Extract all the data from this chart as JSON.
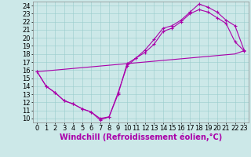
{
  "xlabel": "Windchill (Refroidissement éolien,°C)",
  "background_color": "#cce8e8",
  "line_color": "#aa00aa",
  "xlim": [
    -0.5,
    23.5
  ],
  "ylim": [
    9.5,
    24.5
  ],
  "xticks": [
    0,
    1,
    2,
    3,
    4,
    5,
    6,
    7,
    8,
    9,
    10,
    11,
    12,
    13,
    14,
    15,
    16,
    17,
    18,
    19,
    20,
    21,
    22,
    23
  ],
  "yticks": [
    10,
    11,
    12,
    13,
    14,
    15,
    16,
    17,
    18,
    19,
    20,
    21,
    22,
    23,
    24
  ],
  "series1_x": [
    0,
    1,
    2,
    3,
    4,
    5,
    6,
    7,
    8,
    9,
    10,
    11,
    12,
    13,
    14,
    15,
    16,
    17,
    18,
    19,
    20,
    21,
    22,
    23
  ],
  "series1_y": [
    15.8,
    14.0,
    13.2,
    12.2,
    11.8,
    11.2,
    10.8,
    10.0,
    10.2,
    13.2,
    16.5,
    17.5,
    18.2,
    19.2,
    20.8,
    21.2,
    22.0,
    23.0,
    23.5,
    23.2,
    22.5,
    21.8,
    19.5,
    18.4
  ],
  "series2_x": [
    0,
    1,
    2,
    3,
    4,
    5,
    6,
    7,
    8,
    9,
    10,
    11,
    12,
    13,
    14,
    15,
    16,
    17,
    18,
    19,
    20,
    21,
    22,
    23
  ],
  "series2_y": [
    15.8,
    14.0,
    13.2,
    12.2,
    11.8,
    11.2,
    10.8,
    9.8,
    10.2,
    13.0,
    16.8,
    17.5,
    18.5,
    19.8,
    21.2,
    21.5,
    22.2,
    23.2,
    24.2,
    23.8,
    23.2,
    22.2,
    21.5,
    18.5
  ],
  "series3_x": [
    0,
    1,
    2,
    3,
    4,
    5,
    6,
    7,
    8,
    9,
    10,
    11,
    12,
    13,
    14,
    15,
    16,
    17,
    18,
    19,
    20,
    21,
    22,
    23
  ],
  "series3_y": [
    15.8,
    15.9,
    16.0,
    16.1,
    16.2,
    16.3,
    16.4,
    16.5,
    16.6,
    16.7,
    16.8,
    16.9,
    17.0,
    17.1,
    17.2,
    17.3,
    17.4,
    17.5,
    17.6,
    17.7,
    17.8,
    17.9,
    18.0,
    18.4
  ],
  "grid_color": "#99cccc",
  "xlabel_fontsize": 7,
  "tick_fontsize": 6
}
